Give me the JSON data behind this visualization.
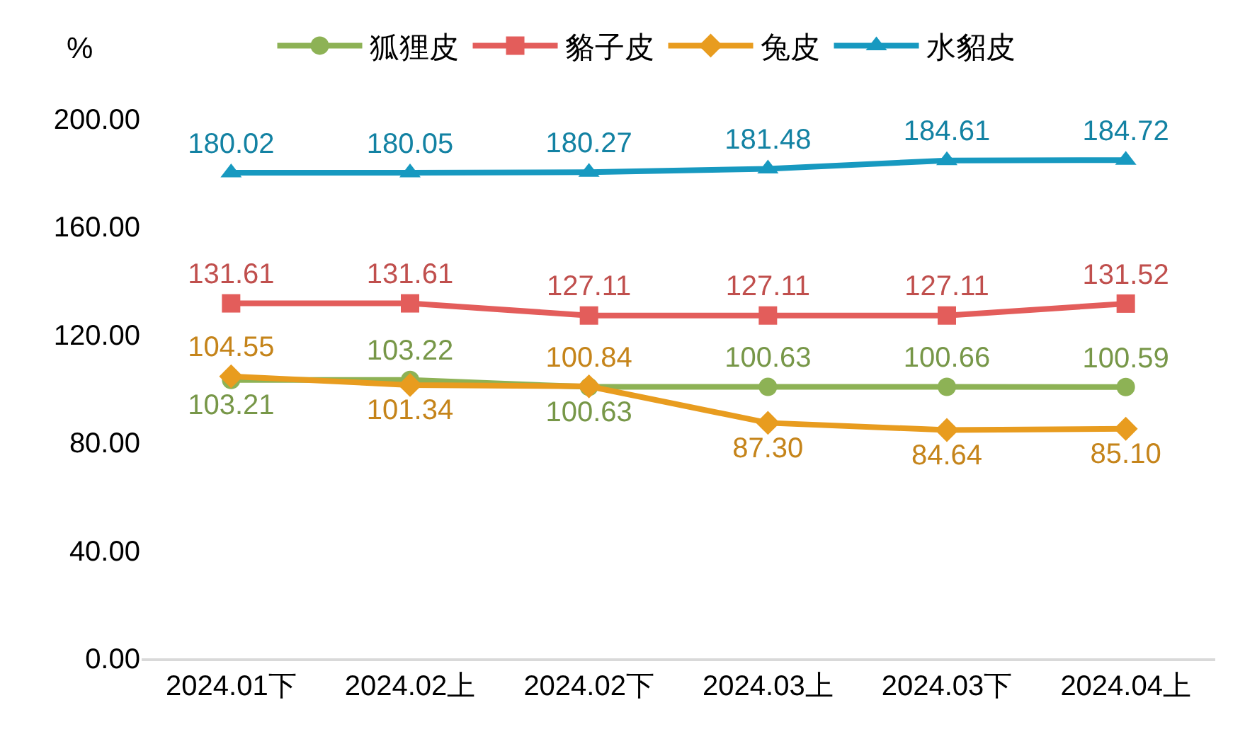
{
  "chart_data": {
    "type": "line",
    "ylabel": "%",
    "categories": [
      "2024.01下",
      "2024.02上",
      "2024.02下",
      "2024.03上",
      "2024.03下",
      "2024.04上"
    ],
    "series": [
      {
        "name": "狐狸皮",
        "color": "#8db255",
        "marker": "circle",
        "values": [
          103.21,
          103.22,
          100.63,
          100.63,
          100.66,
          100.59
        ],
        "value_labels": [
          "103.21",
          "103.22",
          "100.63",
          "100.63",
          "100.66",
          "100.59"
        ]
      },
      {
        "name": "貉子皮",
        "color": "#e35d5b",
        "marker": "square",
        "values": [
          131.61,
          131.61,
          127.11,
          127.11,
          127.11,
          131.52
        ],
        "value_labels": [
          "131.61",
          "131.61",
          "127.11",
          "127.11",
          "127.11",
          "131.52"
        ]
      },
      {
        "name": "兔皮",
        "color": "#e89c1f",
        "marker": "diamond",
        "values": [
          104.55,
          101.34,
          100.84,
          87.3,
          84.64,
          85.1
        ],
        "value_labels": [
          "104.55",
          "101.34",
          "100.84",
          "87.30",
          "84.64",
          "85.10"
        ]
      },
      {
        "name": "水貂皮",
        "color": "#1799c0",
        "marker": "triangle",
        "values": [
          180.02,
          180.05,
          180.27,
          181.48,
          184.61,
          184.72
        ],
        "value_labels": [
          "180.02",
          "180.05",
          "180.27",
          "181.48",
          "184.61",
          "184.72"
        ]
      }
    ],
    "ylim": [
      0,
      200
    ],
    "yticks": [
      {
        "value": 0,
        "label": "0.00"
      },
      {
        "value": 40,
        "label": "40.00"
      },
      {
        "value": 80,
        "label": "80.00"
      },
      {
        "value": 120,
        "label": "120.00"
      },
      {
        "value": 160,
        "label": "160.00"
      },
      {
        "value": 200,
        "label": "200.00"
      }
    ],
    "grid": false,
    "legend": "top",
    "line_style": "solid"
  }
}
